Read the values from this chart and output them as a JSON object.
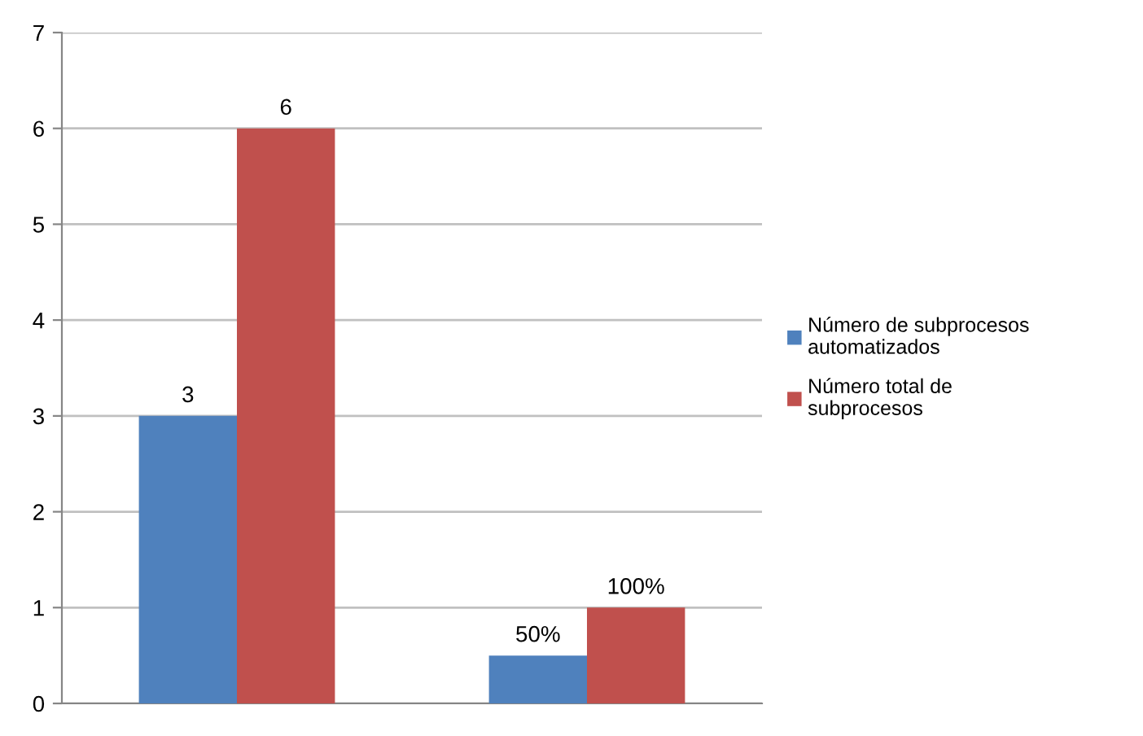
{
  "chart_data": {
    "type": "bar",
    "categories": [
      null,
      null
    ],
    "series": [
      {
        "name": "Número de subprocesos automatizados",
        "color": "#4f81bd",
        "values": [
          3,
          0.5
        ],
        "value_labels": [
          "3",
          "50%"
        ]
      },
      {
        "name": "Número total de subprocesos",
        "color": "#c0504d",
        "values": [
          6,
          1
        ],
        "value_labels": [
          "6",
          "100%"
        ]
      }
    ],
    "ylim": [
      0,
      7
    ],
    "yticks": [
      0,
      1,
      2,
      3,
      4,
      5,
      6,
      7
    ],
    "grid": "y",
    "legend": "right"
  }
}
